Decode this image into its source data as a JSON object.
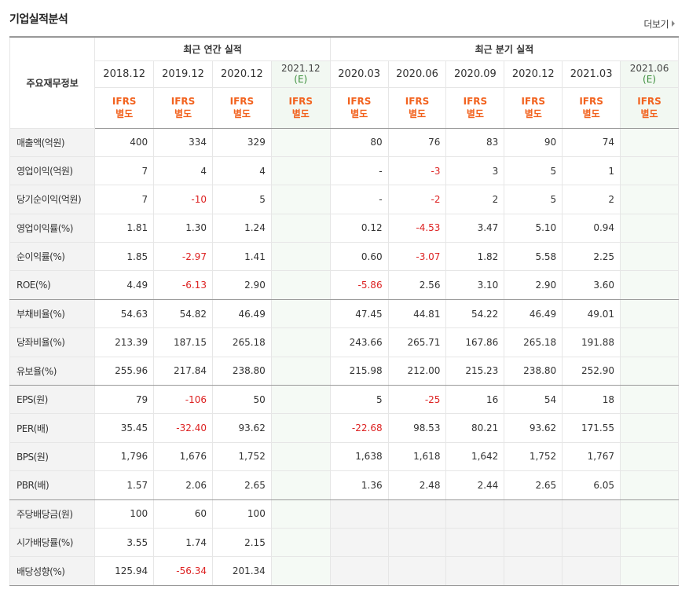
{
  "title": "기업실적분석",
  "more_label": "더보기",
  "header": {
    "label": "주요재무정보",
    "annual_group": "최근 연간 실적",
    "quarter_group": "최근 분기 실적",
    "annual_periods": [
      "2018.12",
      "2019.12",
      "2020.12"
    ],
    "annual_estimate": {
      "period": "2021.12",
      "mark": "(E)"
    },
    "quarter_periods": [
      "2020.03",
      "2020.06",
      "2020.09",
      "2020.12",
      "2021.03"
    ],
    "quarter_estimate": {
      "period": "2021.06",
      "mark": "(E)"
    },
    "standard_line1": "IFRS",
    "standard_line2": "별도"
  },
  "rows": [
    {
      "label": "매출액(억원)",
      "annual": [
        "400",
        "334",
        "329"
      ],
      "annual_est": "",
      "quarter": [
        "80",
        "76",
        "83",
        "90",
        "74"
      ],
      "quarter_est": ""
    },
    {
      "label": "영업이익(억원)",
      "annual": [
        "7",
        "4",
        "4"
      ],
      "annual_est": "",
      "quarter": [
        "-",
        "-3",
        "3",
        "5",
        "1"
      ],
      "quarter_est": ""
    },
    {
      "label": "당기순이익(억원)",
      "annual": [
        "7",
        "-10",
        "5"
      ],
      "annual_est": "",
      "quarter": [
        "-",
        "-2",
        "2",
        "5",
        "2"
      ],
      "quarter_est": ""
    },
    {
      "label": "영업이익률(%)",
      "annual": [
        "1.81",
        "1.30",
        "1.24"
      ],
      "annual_est": "",
      "quarter": [
        "0.12",
        "-4.53",
        "3.47",
        "5.10",
        "0.94"
      ],
      "quarter_est": ""
    },
    {
      "label": "순이익률(%)",
      "annual": [
        "1.85",
        "-2.97",
        "1.41"
      ],
      "annual_est": "",
      "quarter": [
        "0.60",
        "-3.07",
        "1.82",
        "5.58",
        "2.25"
      ],
      "quarter_est": ""
    },
    {
      "label": "ROE(%)",
      "annual": [
        "4.49",
        "-6.13",
        "2.90"
      ],
      "annual_est": "",
      "quarter": [
        "-5.86",
        "2.56",
        "3.10",
        "2.90",
        "3.60"
      ],
      "quarter_est": ""
    },
    {
      "label": "부채비율(%)",
      "annual": [
        "54.63",
        "54.82",
        "46.49"
      ],
      "annual_est": "",
      "quarter": [
        "47.45",
        "44.81",
        "54.22",
        "46.49",
        "49.01"
      ],
      "quarter_est": ""
    },
    {
      "label": "당좌비율(%)",
      "annual": [
        "213.39",
        "187.15",
        "265.18"
      ],
      "annual_est": "",
      "quarter": [
        "243.66",
        "265.71",
        "167.86",
        "265.18",
        "191.88"
      ],
      "quarter_est": ""
    },
    {
      "label": "유보율(%)",
      "annual": [
        "255.96",
        "217.84",
        "238.80"
      ],
      "annual_est": "",
      "quarter": [
        "215.98",
        "212.00",
        "215.23",
        "238.80",
        "252.90"
      ],
      "quarter_est": ""
    },
    {
      "label": "EPS(원)",
      "annual": [
        "79",
        "-106",
        "50"
      ],
      "annual_est": "",
      "quarter": [
        "5",
        "-25",
        "16",
        "54",
        "18"
      ],
      "quarter_est": ""
    },
    {
      "label": "PER(배)",
      "annual": [
        "35.45",
        "-32.40",
        "93.62"
      ],
      "annual_est": "",
      "quarter": [
        "-22.68",
        "98.53",
        "80.21",
        "93.62",
        "171.55"
      ],
      "quarter_est": ""
    },
    {
      "label": "BPS(원)",
      "annual": [
        "1,796",
        "1,676",
        "1,752"
      ],
      "annual_est": "",
      "quarter": [
        "1,638",
        "1,618",
        "1,642",
        "1,752",
        "1,767"
      ],
      "quarter_est": ""
    },
    {
      "label": "PBR(배)",
      "annual": [
        "1.57",
        "2.06",
        "2.65"
      ],
      "annual_est": "",
      "quarter": [
        "1.36",
        "2.48",
        "2.44",
        "2.65",
        "6.05"
      ],
      "quarter_est": ""
    },
    {
      "label": "주당배당금(원)",
      "annual": [
        "100",
        "60",
        "100"
      ],
      "annual_est": "",
      "quarter": [
        "",
        "",
        "",
        "",
        ""
      ],
      "quarter_est": ""
    },
    {
      "label": "시가배당률(%)",
      "annual": [
        "3.55",
        "1.74",
        "2.15"
      ],
      "annual_est": "",
      "quarter": [
        "",
        "",
        "",
        "",
        ""
      ],
      "quarter_est": ""
    },
    {
      "label": "배당성향(%)",
      "annual": [
        "125.94",
        "-56.34",
        "201.34"
      ],
      "annual_est": "",
      "quarter": [
        "",
        "",
        "",
        "",
        ""
      ],
      "quarter_est": ""
    }
  ],
  "colors": {
    "negative": "#dd2222",
    "standard": "#f2621e",
    "estimate_bg": "#f5faf5"
  }
}
